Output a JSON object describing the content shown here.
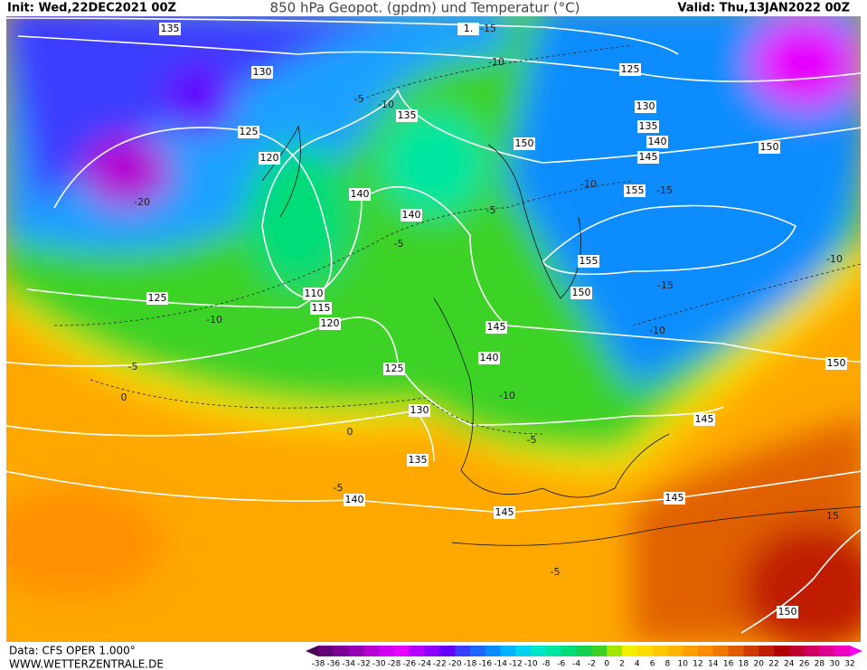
{
  "header": {
    "init": "Init: Wed,22DEC2021 00Z",
    "title": "850 hPa Geopot. (gpdm) und Temperatur (°C)",
    "valid": "Valid: Thu,13JAN2022 00Z"
  },
  "map": {
    "height_labels": [
      "135",
      "1.",
      "130",
      "125",
      "135",
      "130",
      "125",
      "135",
      "140",
      "150",
      "150",
      "120",
      "145",
      "155",
      "140",
      "140",
      "155",
      "125",
      "150",
      "110",
      "115",
      "120",
      "145",
      "140",
      "150",
      "125",
      "130",
      "145",
      "135",
      "140",
      "145",
      "145",
      "150"
    ],
    "temperature_labels": [
      "-15",
      "-10",
      "-5",
      "-10",
      "-20",
      "-10",
      "-15",
      "-5",
      "-5",
      "-10",
      "-5",
      "0",
      "-10",
      "-15",
      "-10",
      "-10",
      "0",
      "-5",
      "-5",
      "-5",
      "15"
    ]
  },
  "legend": {
    "labels": [
      -38,
      -36,
      -34,
      -32,
      -30,
      -28,
      -26,
      -24,
      -22,
      -20,
      -18,
      -16,
      -14,
      -12,
      -10,
      -8,
      -6,
      -4,
      -2,
      0,
      2,
      4,
      6,
      8,
      10,
      12,
      14,
      16,
      18,
      20,
      22,
      24,
      26,
      28,
      30,
      32
    ],
    "colors": [
      "#4b0050",
      "#640078",
      "#7d0096",
      "#9600b4",
      "#b400d2",
      "#d200f0",
      "#e600ff",
      "#b400ff",
      "#8c00ff",
      "#6400ff",
      "#3c3cff",
      "#1e64ff",
      "#0a8cff",
      "#00b4ff",
      "#00d2f0",
      "#00e6c8",
      "#00e6a0",
      "#00dc78",
      "#14d250",
      "#3cd228",
      "#a0e600",
      "#f0f000",
      "#ffdc00",
      "#ffc800",
      "#ffb400",
      "#ffa000",
      "#ff8c00",
      "#f07800",
      "#e05a00",
      "#d03c00",
      "#c01e00",
      "#b00000",
      "#c00030",
      "#d00060",
      "#e00090",
      "#f000c0",
      "#ff00f0"
    ]
  },
  "footer": {
    "source": "Data: CFS OPER 1.000°",
    "site": "WWW.WETTERZENTRALE.DE"
  }
}
